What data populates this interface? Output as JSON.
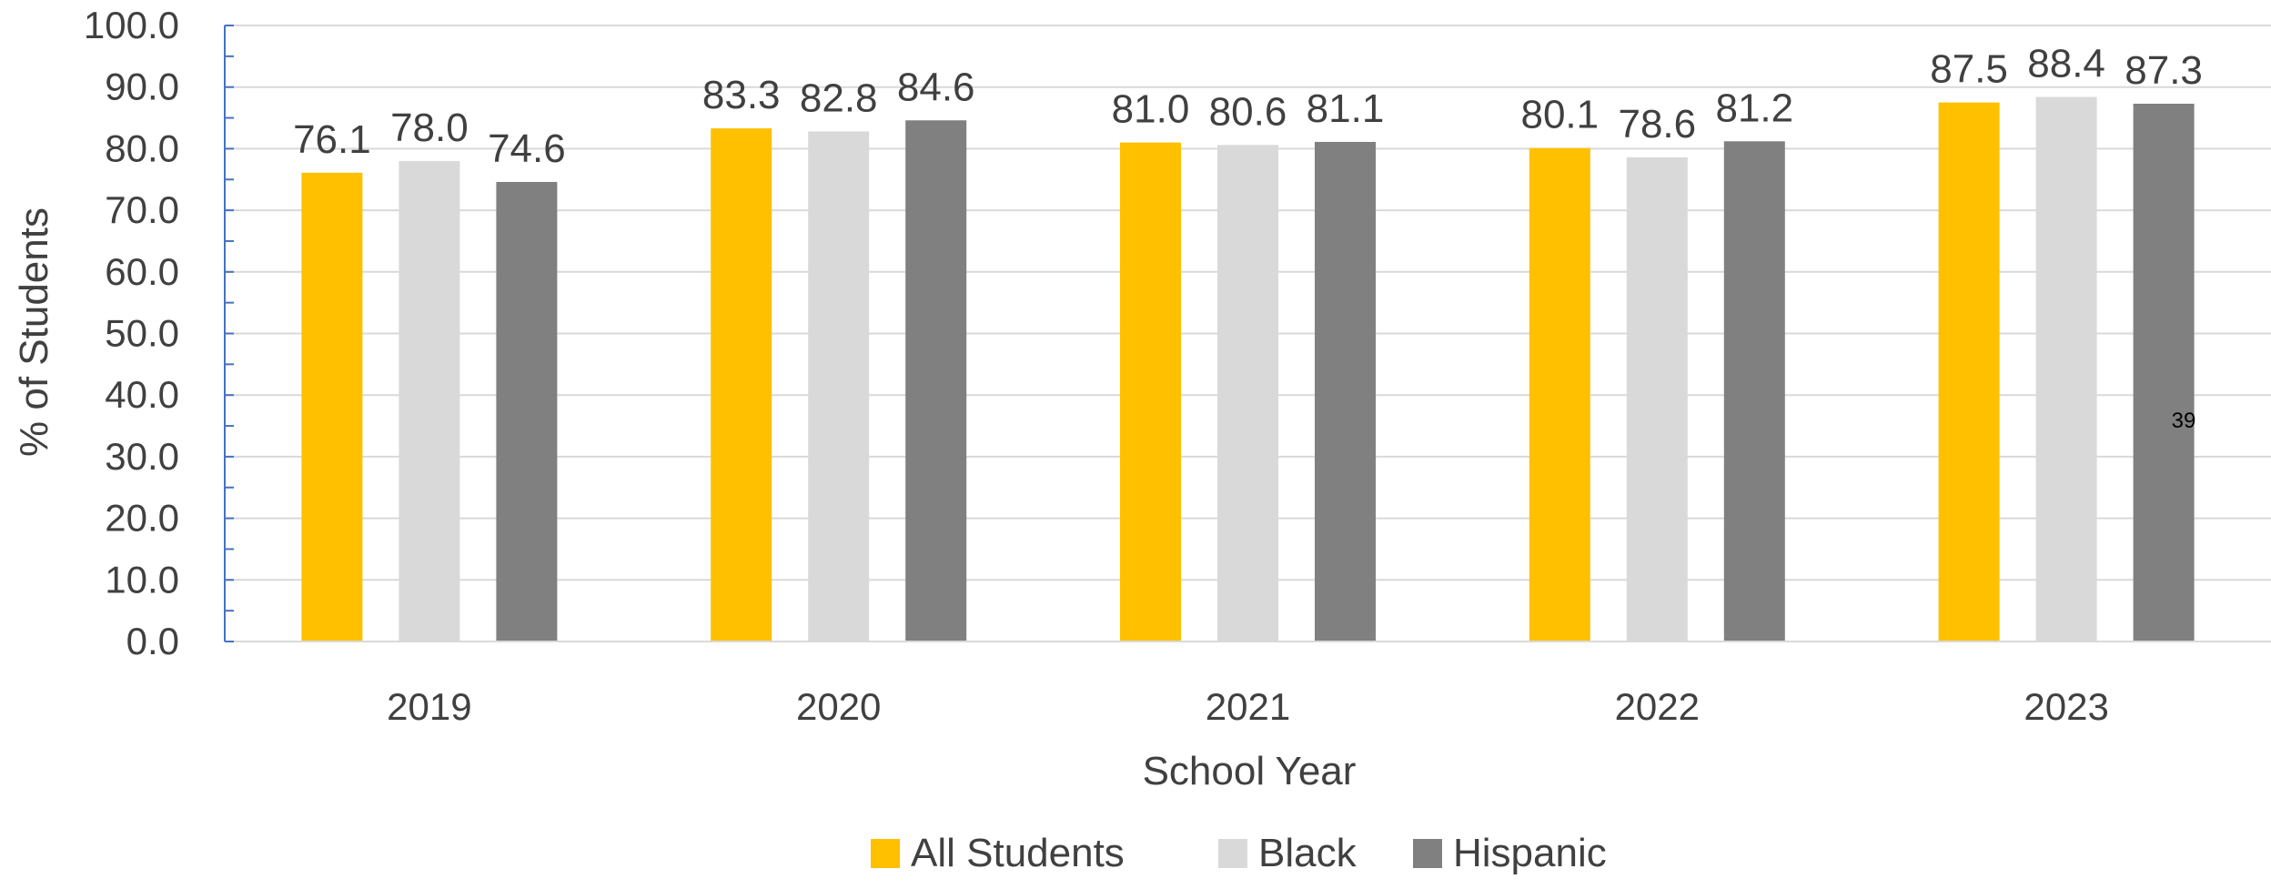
{
  "chart_data": {
    "type": "bar",
    "categories": [
      "2019",
      "2020",
      "2021",
      "2022",
      "2023"
    ],
    "series": [
      {
        "name": "All Students",
        "color": "#FFC000",
        "values": [
          76.1,
          83.3,
          81.0,
          80.1,
          87.5
        ]
      },
      {
        "name": "Black",
        "color": "#D9D9D9",
        "values": [
          78.0,
          82.8,
          80.6,
          78.6,
          88.4
        ]
      },
      {
        "name": "Hispanic",
        "color": "#808080",
        "values": [
          74.6,
          84.6,
          81.1,
          81.2,
          87.3
        ]
      }
    ],
    "xlabel": "School Year",
    "ylabel": "% of Students",
    "ylim": [
      0,
      100
    ],
    "yticks": [
      "0.0",
      "10.0",
      "20.0",
      "30.0",
      "40.0",
      "50.0",
      "60.0",
      "70.0",
      "80.0",
      "90.0",
      "100.0"
    ],
    "grid": true,
    "legend_position": "bottom"
  },
  "page_number": "39",
  "colors": {
    "axis": "#4472C4",
    "grid": "#D9D9D9",
    "text": "#404040"
  }
}
